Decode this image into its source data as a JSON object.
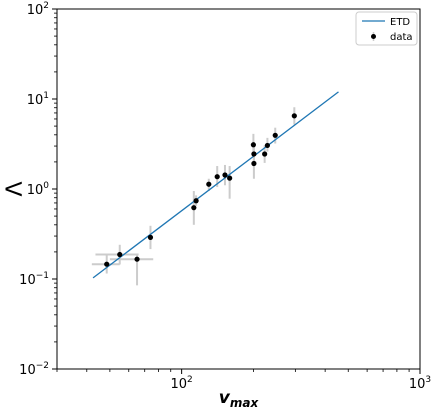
{
  "chart_data": {
    "type": "scatter",
    "x_scale": "log",
    "y_scale": "log",
    "xlim": [
      30,
      1000
    ],
    "ylim": [
      0.01,
      100
    ],
    "xlabel": "v_max",
    "ylabel": "Λ",
    "x_ticks": [
      {
        "value": 100,
        "base": "10",
        "exp": "2"
      },
      {
        "value": 1000,
        "base": "10",
        "exp": "3"
      }
    ],
    "y_ticks": [
      {
        "value": 0.01,
        "base": "10",
        "exp": "−2"
      },
      {
        "value": 0.1,
        "base": "10",
        "exp": "−1"
      },
      {
        "value": 1,
        "base": "10",
        "exp": "0"
      },
      {
        "value": 10,
        "base": "10",
        "exp": "1"
      },
      {
        "value": 100,
        "base": "10",
        "exp": "2"
      }
    ],
    "grid": false,
    "legend_position": "top-right",
    "series": [
      {
        "name": "ETD",
        "kind": "line",
        "color": "#1f77b4",
        "x": [
          42.5,
          455
        ],
        "y": [
          0.103,
          12.0
        ]
      },
      {
        "name": "data",
        "kind": "errorbar",
        "color": "#000000",
        "errorbar_color": "#cccccc",
        "points": [
          {
            "x": 48.5,
            "y": 0.146,
            "xerr": [
              42,
              55
            ],
            "yerr": [
              0.115,
              0.185
            ]
          },
          {
            "x": 55,
            "y": 0.187,
            "xerr": [
              43.5,
              66
            ],
            "yerr": [
              0.145,
              0.24
            ]
          },
          {
            "x": 65,
            "y": 0.166,
            "xerr": [
              50,
              76
            ],
            "yerr": [
              0.085,
              0.19
            ]
          },
          {
            "x": 74,
            "y": 0.29,
            "xerr": null,
            "yerr": [
              0.215,
              0.39
            ]
          },
          {
            "x": 112.5,
            "y": 0.62,
            "xerr": null,
            "yerr": [
              0.4,
              0.95
            ]
          },
          {
            "x": 115,
            "y": 0.74,
            "xerr": null,
            "yerr": [
              0.65,
              0.85
            ]
          },
          {
            "x": 130,
            "y": 1.13,
            "xerr": null,
            "yerr": [
              0.95,
              1.3
            ]
          },
          {
            "x": 141,
            "y": 1.37,
            "xerr": null,
            "yerr": [
              1.05,
              1.8
            ]
          },
          {
            "x": 152,
            "y": 1.43,
            "xerr": null,
            "yerr": [
              1.1,
              1.85
            ]
          },
          {
            "x": 159,
            "y": 1.32,
            "xerr": null,
            "yerr": [
              0.78,
              1.8
            ]
          },
          {
            "x": 200,
            "y": 3.1,
            "xerr": null,
            "yerr": [
              2.3,
              4.1
            ]
          },
          {
            "x": 201,
            "y": 2.45,
            "xerr": null,
            "yerr": [
              2.0,
              3.0
            ]
          },
          {
            "x": 201,
            "y": 1.92,
            "xerr": null,
            "yerr": [
              1.3,
              2.5
            ]
          },
          {
            "x": 223,
            "y": 2.45,
            "xerr": null,
            "yerr": [
              1.95,
              3.05
            ]
          },
          {
            "x": 229,
            "y": 3.05,
            "xerr": null,
            "yerr": [
              2.6,
              3.7
            ]
          },
          {
            "x": 247,
            "y": 3.95,
            "xerr": null,
            "yerr": [
              3.2,
              4.8
            ]
          },
          {
            "x": 297,
            "y": 6.5,
            "xerr": null,
            "yerr": [
              5.2,
              8.1
            ]
          }
        ]
      }
    ]
  }
}
